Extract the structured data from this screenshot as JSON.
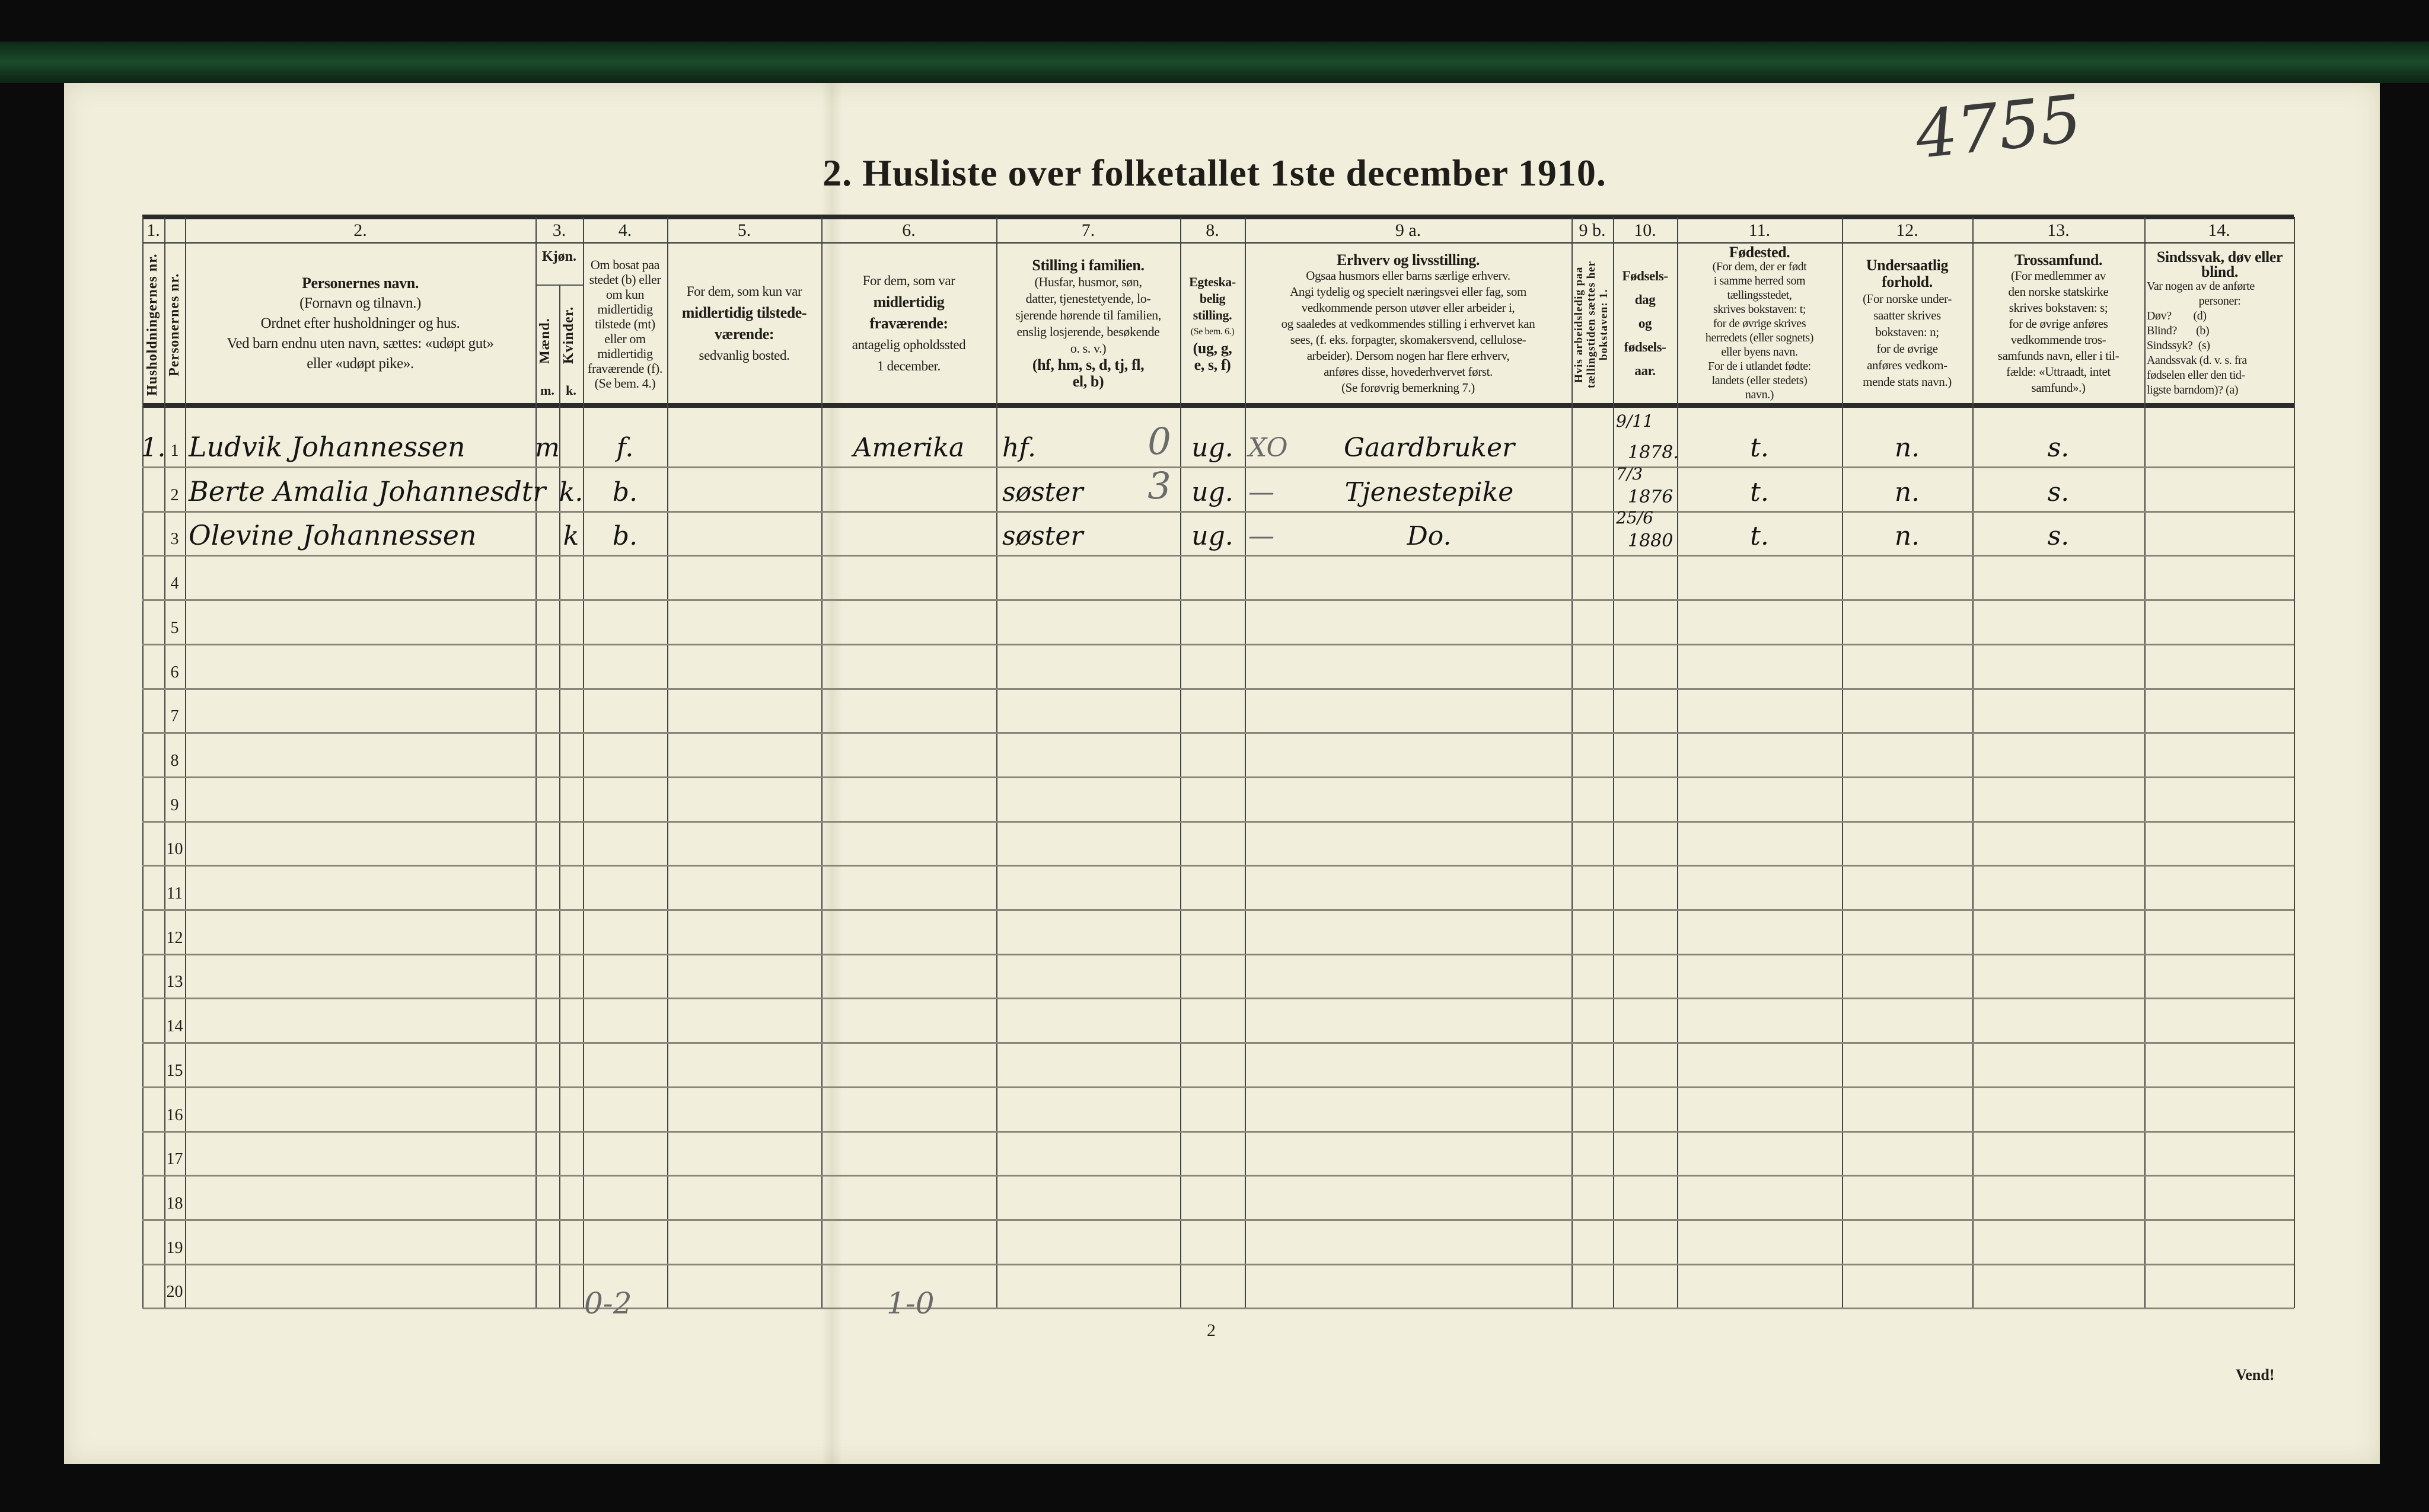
{
  "title": "2.  Husliste over folketallet 1ste december 1910.",
  "archive_mark": "4755",
  "columns": {
    "c1": {
      "num": "1.",
      "label": "Husholdningernes nr."
    },
    "c1b": {
      "label": "Personernes nr."
    },
    "c2": {
      "num": "2.",
      "title": "Personernes navn.",
      "lines": [
        "(Fornavn og tilnavn.)",
        "Ordnet efter husholdninger og hus.",
        "Ved barn endnu uten navn, sættes: «udøpt gut»",
        "eller «udøpt pike»."
      ]
    },
    "c3": {
      "num": "3.",
      "title": "Kjøn.",
      "m_label": "Mænd.",
      "k_label": "Kvinder.",
      "m": "m.",
      "k": "k."
    },
    "c4": {
      "num": "4.",
      "text": "Om bosat paa stedet (b) eller om kun midlertidig tilstede (mt) eller om midlertidig fraværende (f). (Se bem. 4.)"
    },
    "c5": {
      "num": "5.",
      "lines": [
        "For dem, som kun var",
        "midlertidig tilstede-",
        "værende:",
        "sedvanlig bosted."
      ]
    },
    "c6": {
      "num": "6.",
      "lines": [
        "For dem, som var",
        "midlertidig",
        "fraværende:",
        "antagelig opholdssted",
        "1 december."
      ]
    },
    "c7": {
      "num": "7.",
      "title": "Stilling i familien.",
      "lines": [
        "(Husfar, husmor, søn,",
        "datter, tjenestetyende, lo-",
        "sjerende hørende til familien,",
        "enslig losjerende, besøkende",
        "o. s. v.)",
        "(hf, hm, s, d, tj, fl,",
        "el, b)"
      ]
    },
    "c8": {
      "num": "8.",
      "title": "Egteska-belig stilling.",
      "lines": [
        "(Se bem. 6.)",
        "(ug, g,",
        "e, s, f)"
      ]
    },
    "c9a": {
      "num": "9 a.",
      "title": "Erhverv og livsstilling.",
      "lines": [
        "Ogsaa husmors eller barns særlige erhverv.",
        "Angi tydelig og specielt næringsvei eller fag, som",
        "vedkommende person utøver eller arbeider i,",
        "og saaledes at vedkommendes stilling i erhvervet kan",
        "sees, (f. eks. forpagter, skomakersvend, cellulose-",
        "arbeider).  Dersom nogen har flere erhverv,",
        "anføres disse, hovederhvervet først.",
        "(Se forøvrig bemerkning 7.)"
      ]
    },
    "c9b": {
      "num": "9 b.",
      "label": "Hvis arbeidsledig paa tællingstiden sættes her bokstaven: 1."
    },
    "c10": {
      "num": "10.",
      "lines": [
        "Fødsels-",
        "dag",
        "og",
        "fødsels-",
        "aar."
      ]
    },
    "c11": {
      "num": "11.",
      "title": "Fødested.",
      "lines": [
        "(For dem, der er født",
        "i samme herred som",
        "tællingsstedet,",
        "skrives bokstaven: t;",
        "for de øvrige skrives",
        "herredets (eller sognets)",
        "eller byens navn.",
        "For de i utlandet fødte:",
        "landets (eller stedets)",
        "navn.)"
      ]
    },
    "c12": {
      "num": "12.",
      "title": "Undersaatlig forhold.",
      "lines": [
        "(For norske under-",
        "saatter skrives",
        "bokstaven: n;",
        "for de øvrige",
        "anføres vedkom-",
        "mende stats navn.)"
      ]
    },
    "c13": {
      "num": "13.",
      "title": "Trossamfund.",
      "lines": [
        "(For medlemmer av",
        "den norske statskirke",
        "skrives bokstaven: s;",
        "for de øvrige anføres",
        "vedkommende tros-",
        "samfunds navn, eller i til-",
        "fælde: «Uttraadt, intet",
        "samfund».)"
      ]
    },
    "c14": {
      "num": "14.",
      "title": "Sindssvak, døv eller blind.",
      "lines": [
        "Var nogen av de anførte",
        "personer:",
        "Døv?        (d)",
        "Blind?       (b)",
        "Sindssyk?  (s)",
        "Aandssvak (d. v. s. fra",
        "fødselen eller den tid-",
        "ligste barndom)? (a)"
      ]
    }
  },
  "row_numbers": [
    "1",
    "2",
    "3",
    "4",
    "5",
    "6",
    "7",
    "8",
    "9",
    "10",
    "11",
    "12",
    "13",
    "14",
    "15",
    "16",
    "17",
    "18",
    "19",
    "20"
  ],
  "entries": [
    {
      "household": "1.",
      "name": "Ludvik Johannessen",
      "m": "m",
      "k": "",
      "residence": "f.",
      "temp_present": "",
      "temp_absent": "Amerika",
      "family_position": "hf.",
      "family_mark": "0",
      "marital": "ug.",
      "occupation_mark": "XO",
      "occupation": "Gaardbruker",
      "birth_day": "9/11",
      "birth_year": "1878.",
      "birthplace": "t.",
      "citizenship": "n.",
      "religion": "s."
    },
    {
      "household": "",
      "name": "Berte Amalia Johannesdtr",
      "m": "",
      "k": "k.",
      "residence": "b.",
      "temp_present": "",
      "temp_absent": "",
      "family_position": "søster",
      "family_mark": "3",
      "marital": "ug.",
      "occupation_mark": "—",
      "occupation": "Tjenestepike",
      "birth_day": "7/3",
      "birth_year": "1876",
      "birthplace": "t.",
      "citizenship": "n.",
      "religion": "s."
    },
    {
      "household": "",
      "name": "Olevine Johannessen",
      "m": "",
      "k": "k",
      "residence": "b.",
      "temp_present": "",
      "temp_absent": "",
      "family_position": "søster",
      "family_mark": "",
      "marital": "ug.",
      "occupation_mark": "—",
      "occupation": "Do.",
      "birth_day": "25/6",
      "birth_year": "1880",
      "birthplace": "t.",
      "citizenship": "n.",
      "religion": "s."
    }
  ],
  "footer": {
    "pencil_total_1": "0-2",
    "pencil_total_2": "1-0",
    "page_number": "2",
    "turn_over": "Vend!"
  }
}
